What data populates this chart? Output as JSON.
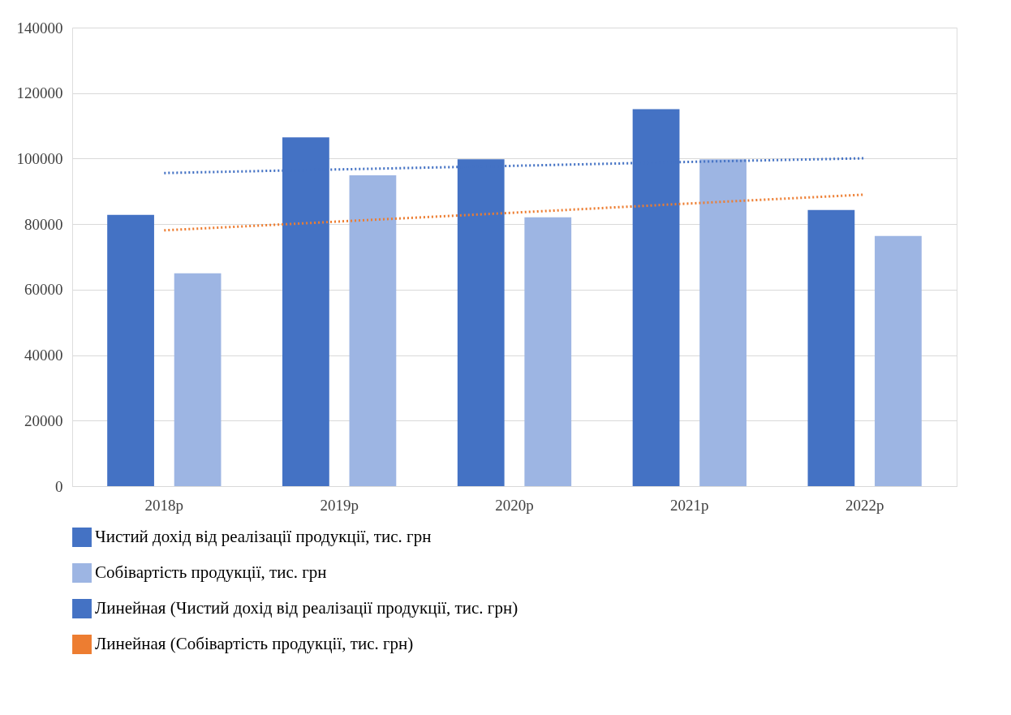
{
  "chart_data": {
    "type": "bar",
    "categories": [
      "2018р",
      "2019р",
      "2020р",
      "2021р",
      "2022р"
    ],
    "series": [
      {
        "name": "Чистий дохід від реалізації продукції, тис. грн",
        "color": "#4472c4",
        "values": [
          82800,
          106500,
          99800,
          115100,
          84300
        ]
      },
      {
        "name": "Собівартість продукції, тис. грн",
        "color": "#9db5e3",
        "values": [
          65000,
          94900,
          82100,
          99800,
          76400
        ]
      },
      {
        "name": "Линейная (Чистий дохід від реалізації продукції, тис. грн)",
        "type": "line",
        "line_style": "dotted",
        "color": "#4472c4",
        "values": [
          95600,
          96700,
          97800,
          99000,
          100100
        ]
      },
      {
        "name": "Линейная (Собівартість продукції, тис. грн)",
        "type": "line",
        "line_style": "dotted",
        "color": "#ed7d31",
        "values": [
          78100,
          80800,
          83500,
          86300,
          89000
        ]
      }
    ],
    "ylim": [
      0,
      140000
    ],
    "yticks": [
      0,
      20000,
      40000,
      60000,
      80000,
      100000,
      120000,
      140000
    ],
    "grid": "y",
    "legend": "bottom"
  }
}
